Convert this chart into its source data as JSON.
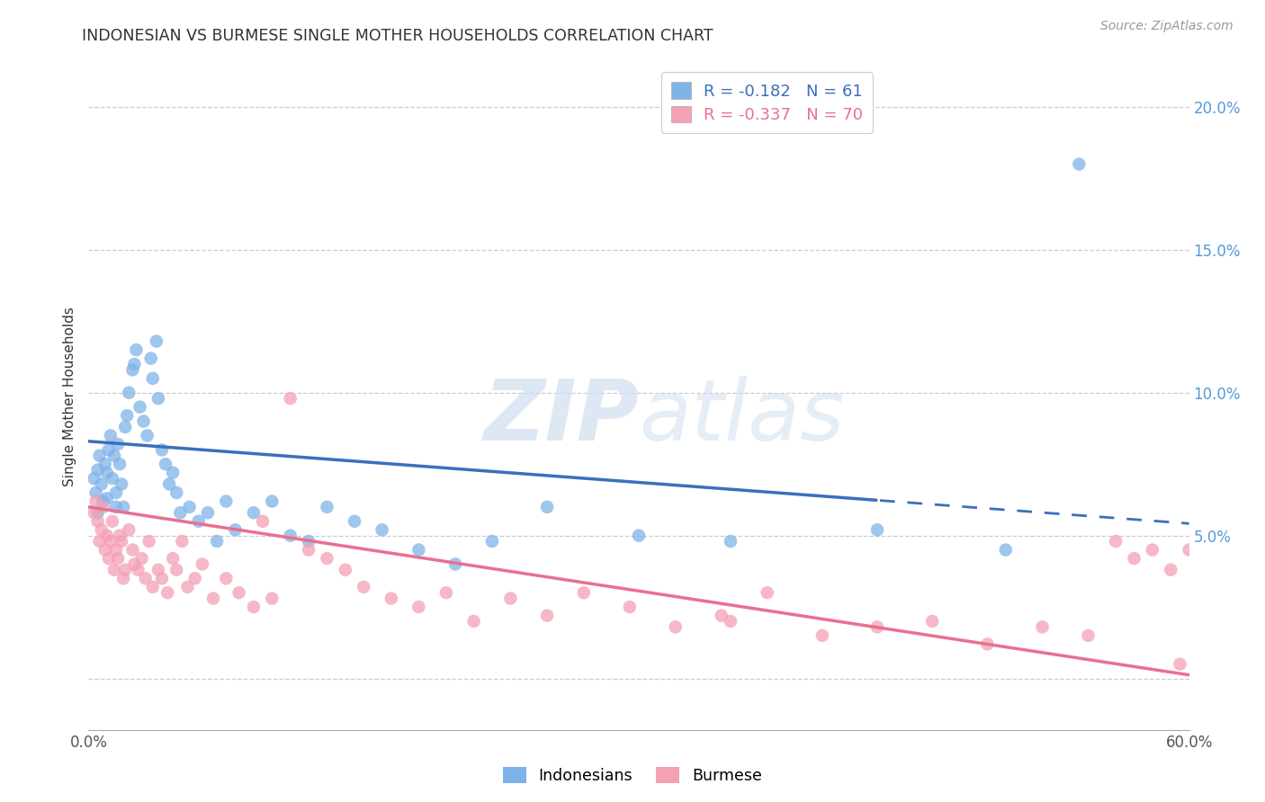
{
  "title": "INDONESIAN VS BURMESE SINGLE MOTHER HOUSEHOLDS CORRELATION CHART",
  "source": "Source: ZipAtlas.com",
  "ylabel": "Single Mother Households",
  "xlim": [
    0.0,
    0.6
  ],
  "ylim": [
    -0.018,
    0.215
  ],
  "yticks": [
    0.0,
    0.05,
    0.1,
    0.15,
    0.2
  ],
  "ytick_labels": [
    "",
    "5.0%",
    "10.0%",
    "15.0%",
    "20.0%"
  ],
  "xticks": [
    0.0,
    0.1,
    0.2,
    0.3,
    0.4,
    0.5,
    0.6
  ],
  "xtick_labels": [
    "0.0%",
    "",
    "",
    "",
    "",
    "",
    "60.0%"
  ],
  "indonesian_R": -0.182,
  "indonesian_N": 61,
  "burmese_R": -0.337,
  "burmese_N": 70,
  "indonesian_color": "#7fb3e8",
  "burmese_color": "#f4a0b5",
  "indonesian_line_color": "#3a6fbd",
  "burmese_line_color": "#e87090",
  "ind_line_solid_end": 0.43,
  "ind_line_dash_start": 0.43,
  "ind_line_intercept": 0.083,
  "ind_line_slope": -0.048,
  "bur_line_intercept": 0.06,
  "bur_line_slope": -0.098,
  "indonesian_x": [
    0.003,
    0.004,
    0.005,
    0.005,
    0.006,
    0.007,
    0.008,
    0.009,
    0.01,
    0.01,
    0.011,
    0.012,
    0.013,
    0.014,
    0.015,
    0.015,
    0.016,
    0.017,
    0.018,
    0.019,
    0.02,
    0.021,
    0.022,
    0.024,
    0.025,
    0.026,
    0.028,
    0.03,
    0.032,
    0.034,
    0.035,
    0.037,
    0.038,
    0.04,
    0.042,
    0.044,
    0.046,
    0.048,
    0.05,
    0.055,
    0.06,
    0.065,
    0.07,
    0.075,
    0.08,
    0.09,
    0.1,
    0.11,
    0.12,
    0.13,
    0.145,
    0.16,
    0.18,
    0.2,
    0.22,
    0.25,
    0.3,
    0.35,
    0.43,
    0.5,
    0.54
  ],
  "indonesian_y": [
    0.07,
    0.065,
    0.073,
    0.058,
    0.078,
    0.068,
    0.062,
    0.075,
    0.072,
    0.063,
    0.08,
    0.085,
    0.07,
    0.078,
    0.065,
    0.06,
    0.082,
    0.075,
    0.068,
    0.06,
    0.088,
    0.092,
    0.1,
    0.108,
    0.11,
    0.115,
    0.095,
    0.09,
    0.085,
    0.112,
    0.105,
    0.118,
    0.098,
    0.08,
    0.075,
    0.068,
    0.072,
    0.065,
    0.058,
    0.06,
    0.055,
    0.058,
    0.048,
    0.062,
    0.052,
    0.058,
    0.062,
    0.05,
    0.048,
    0.06,
    0.055,
    0.052,
    0.045,
    0.04,
    0.048,
    0.06,
    0.05,
    0.048,
    0.052,
    0.045,
    0.18
  ],
  "burmese_x": [
    0.003,
    0.004,
    0.005,
    0.006,
    0.007,
    0.008,
    0.009,
    0.01,
    0.011,
    0.012,
    0.013,
    0.014,
    0.015,
    0.016,
    0.017,
    0.018,
    0.019,
    0.02,
    0.022,
    0.024,
    0.025,
    0.027,
    0.029,
    0.031,
    0.033,
    0.035,
    0.038,
    0.04,
    0.043,
    0.046,
    0.048,
    0.051,
    0.054,
    0.058,
    0.062,
    0.068,
    0.075,
    0.082,
    0.09,
    0.1,
    0.11,
    0.12,
    0.13,
    0.14,
    0.15,
    0.165,
    0.18,
    0.195,
    0.21,
    0.23,
    0.25,
    0.27,
    0.295,
    0.32,
    0.345,
    0.37,
    0.4,
    0.43,
    0.46,
    0.49,
    0.52,
    0.545,
    0.56,
    0.57,
    0.58,
    0.59,
    0.595,
    0.6,
    0.35,
    0.095
  ],
  "burmese_y": [
    0.058,
    0.062,
    0.055,
    0.048,
    0.052,
    0.06,
    0.045,
    0.05,
    0.042,
    0.048,
    0.055,
    0.038,
    0.045,
    0.042,
    0.05,
    0.048,
    0.035,
    0.038,
    0.052,
    0.045,
    0.04,
    0.038,
    0.042,
    0.035,
    0.048,
    0.032,
    0.038,
    0.035,
    0.03,
    0.042,
    0.038,
    0.048,
    0.032,
    0.035,
    0.04,
    0.028,
    0.035,
    0.03,
    0.025,
    0.028,
    0.098,
    0.045,
    0.042,
    0.038,
    0.032,
    0.028,
    0.025,
    0.03,
    0.02,
    0.028,
    0.022,
    0.03,
    0.025,
    0.018,
    0.022,
    0.03,
    0.015,
    0.018,
    0.02,
    0.012,
    0.018,
    0.015,
    0.048,
    0.042,
    0.045,
    0.038,
    0.005,
    0.045,
    0.02,
    0.055
  ]
}
